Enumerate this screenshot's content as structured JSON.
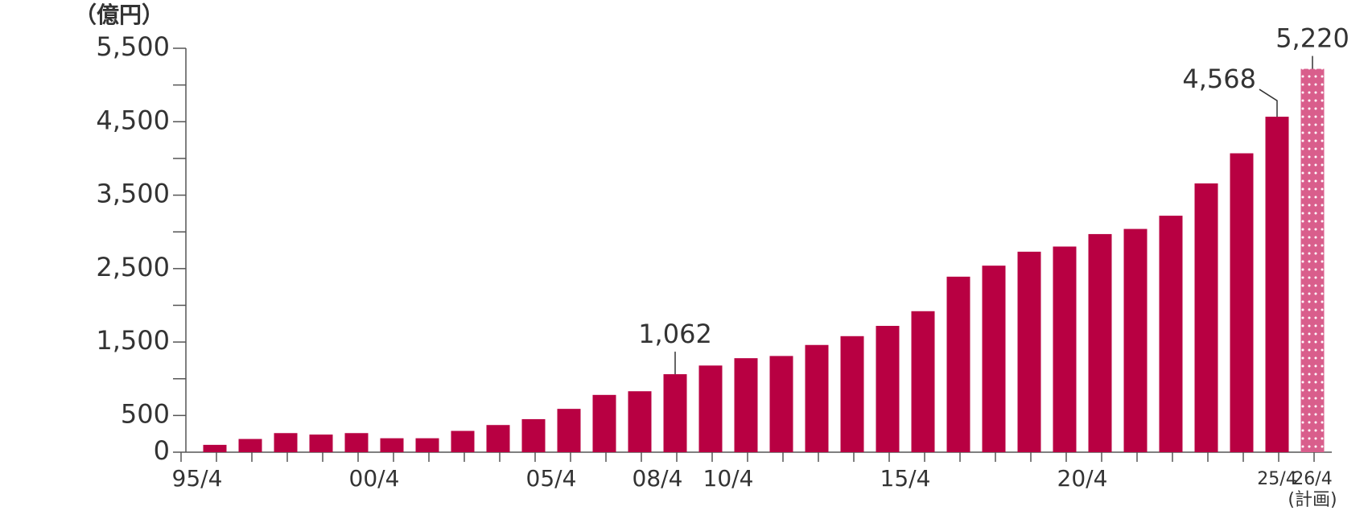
{
  "chart_data": {
    "type": "bar",
    "y_label": "（億円）",
    "categories": [
      "95/4",
      null,
      null,
      null,
      null,
      "00/4",
      null,
      null,
      null,
      null,
      "05/4",
      null,
      null,
      "08/4",
      null,
      "10/4",
      null,
      null,
      null,
      null,
      "15/4",
      null,
      null,
      null,
      null,
      "20/4",
      null,
      null,
      null,
      null,
      "25/4",
      "26/4"
    ],
    "category_notes": [
      null,
      null,
      null,
      null,
      null,
      null,
      null,
      null,
      null,
      null,
      null,
      null,
      null,
      null,
      null,
      null,
      null,
      null,
      null,
      null,
      null,
      null,
      null,
      null,
      null,
      null,
      null,
      null,
      null,
      null,
      null,
      "(計画)"
    ],
    "values": [
      100,
      180,
      260,
      240,
      260,
      190,
      190,
      290,
      370,
      450,
      590,
      780,
      830,
      1062,
      1180,
      1280,
      1310,
      1460,
      1580,
      1720,
      1920,
      2390,
      2540,
      2730,
      2800,
      2970,
      3040,
      3220,
      3660,
      4070,
      4568,
      5220
    ],
    "value_labels": [
      null,
      null,
      null,
      null,
      null,
      null,
      null,
      null,
      null,
      null,
      null,
      null,
      null,
      "1,062",
      null,
      null,
      null,
      null,
      null,
      null,
      null,
      null,
      null,
      null,
      null,
      null,
      null,
      null,
      null,
      null,
      "4,568",
      "5,220"
    ],
    "color": "#b80042",
    "plan_color": "#d95e8c",
    "fill_styles": [
      "solid",
      "solid",
      "solid",
      "solid",
      "solid",
      "solid",
      "solid",
      "solid",
      "solid",
      "solid",
      "solid",
      "solid",
      "solid",
      "solid",
      "solid",
      "solid",
      "solid",
      "solid",
      "solid",
      "solid",
      "solid",
      "solid",
      "solid",
      "solid",
      "solid",
      "solid",
      "solid",
      "solid",
      "solid",
      "solid",
      "solid",
      "dotted"
    ],
    "ylim": [
      0,
      5500
    ],
    "yticks": [
      0,
      500,
      {
        "value": 1500,
        "label": "1,500"
      },
      {
        "value": 2500,
        "label": "2,500"
      },
      {
        "value": 3500,
        "label": "3,500"
      },
      {
        "value": 4500,
        "label": "4,500"
      },
      {
        "value": 5500,
        "label": "5,500"
      }
    ],
    "minor_yticks": [
      1000,
      2000,
      3000,
      4000,
      5000
    ]
  }
}
